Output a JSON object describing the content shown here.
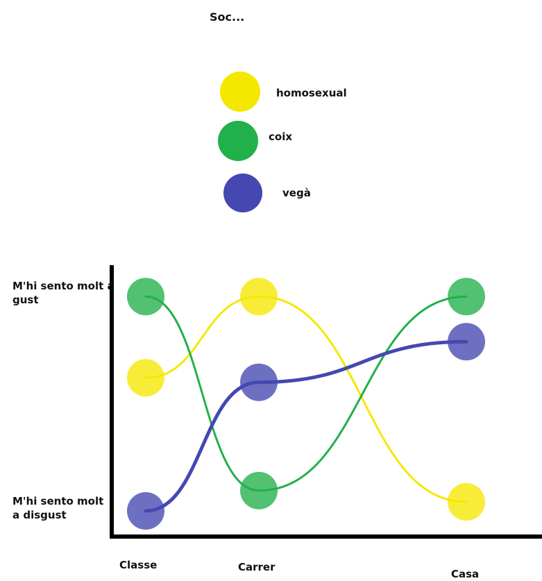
{
  "chart_data": {
    "type": "line",
    "title": "Soc...",
    "categories": [
      "Classe",
      "Carrer",
      "Casa"
    ],
    "y_tick_labels": {
      "top": "M'hi sento molt a gust",
      "bottom": "M'hi sento molt a disgust"
    },
    "ylim": [
      0,
      10
    ],
    "series": [
      {
        "name": "homosexual",
        "color": "#f5e800",
        "values": [
          5.9,
          9.5,
          0.4
        ]
      },
      {
        "name": "coix",
        "color": "#22b04a",
        "values": [
          9.5,
          0.9,
          9.5
        ]
      },
      {
        "name": "vegà",
        "color": "#4448b0",
        "values": [
          0.0,
          5.7,
          7.5
        ]
      }
    ],
    "legend_position": "top-center",
    "grid": false
  }
}
